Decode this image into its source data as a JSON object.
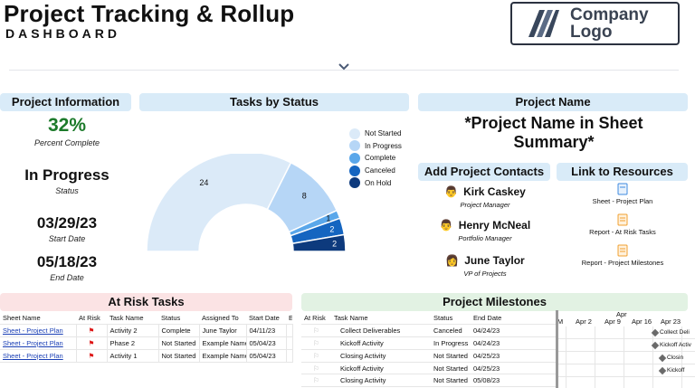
{
  "header": {
    "title": "Project Tracking & Rollup",
    "subtitle": "DASHBOARD",
    "logo_line1": "Company",
    "logo_line2": "Logo"
  },
  "project_information": {
    "heading": "Project Information",
    "percent": "32%",
    "percent_caption": "Percent Complete",
    "status": "In Progress",
    "status_caption": "Status",
    "start_date": "03/29/23",
    "start_caption": "Start Date",
    "end_date": "05/18/23",
    "end_caption": "End Date"
  },
  "tasks_by_status": {
    "heading": "Tasks by Status",
    "legend": [
      "Not Started",
      "In Progress",
      "Complete",
      "Canceled",
      "On Hold"
    ],
    "colors": [
      "#dbeaf8",
      "#b6d6f6",
      "#5aa7ea",
      "#1565c0",
      "#0d3a7d"
    ],
    "labels": [
      "24",
      "8",
      "1",
      "2",
      "2"
    ]
  },
  "chart_data": {
    "type": "pie",
    "title": "Tasks by Status",
    "categories": [
      "Not Started",
      "In Progress",
      "Complete",
      "Canceled",
      "On Hold"
    ],
    "values": [
      24,
      8,
      1,
      2,
      2
    ],
    "legend": "right"
  },
  "project_name": {
    "heading": "Project Name",
    "value": "*Project Name in Sheet Summary*"
  },
  "contacts": {
    "heading": "Add Project Contacts",
    "people": [
      {
        "name": "Kirk Caskey",
        "role": "Project Manager"
      },
      {
        "name": "Henry McNeal",
        "role": "Portfolio Manager"
      },
      {
        "name": "June Taylor",
        "role": "VP of Projects"
      }
    ]
  },
  "resources": {
    "heading": "Link to Resources",
    "links": [
      "Sheet - Project Plan",
      "Report - At Risk Tasks",
      "Report - Project Milestones"
    ]
  },
  "at_risk": {
    "heading": "At Risk Tasks",
    "columns": [
      "Sheet Name",
      "At Risk",
      "Task Name",
      "Status",
      "Assigned To",
      "Start Date",
      "E"
    ],
    "rows": [
      [
        "Sheet - Project Plan",
        "",
        "Activity 2",
        "Complete",
        "June Taylor",
        "04/11/23",
        ""
      ],
      [
        "Sheet - Project Plan",
        "",
        "Phase 2",
        "Not Started",
        "Example Name",
        "05/04/23",
        ""
      ],
      [
        "Sheet - Project Plan",
        "",
        "Activity 1",
        "Not Started",
        "Example Name",
        "05/04/23",
        ""
      ]
    ]
  },
  "milestones": {
    "heading": "Project Milestones",
    "columns": [
      "At Risk",
      "Task Name",
      "Status",
      "End Date"
    ],
    "rows": [
      [
        "",
        "Collect Deliverables",
        "Canceled",
        "04/24/23"
      ],
      [
        "",
        "Kickoff Activity",
        "In Progress",
        "04/24/23"
      ],
      [
        "",
        "Closing Activity",
        "Not Started",
        "04/25/23"
      ],
      [
        "",
        "Kickoff Activity",
        "Not Started",
        "04/25/23"
      ],
      [
        "",
        "Closing Activity",
        "Not Started",
        "05/08/23"
      ]
    ],
    "gantt": {
      "month": "Apr",
      "weeks": [
        "M",
        "Apr 2",
        "Apr 9",
        "Apr 16",
        "Apr 23",
        "Ap"
      ],
      "bar_labels": [
        "Collect Deli",
        "Kickoff Activ",
        "Closin",
        "Kickoff",
        ""
      ]
    }
  }
}
